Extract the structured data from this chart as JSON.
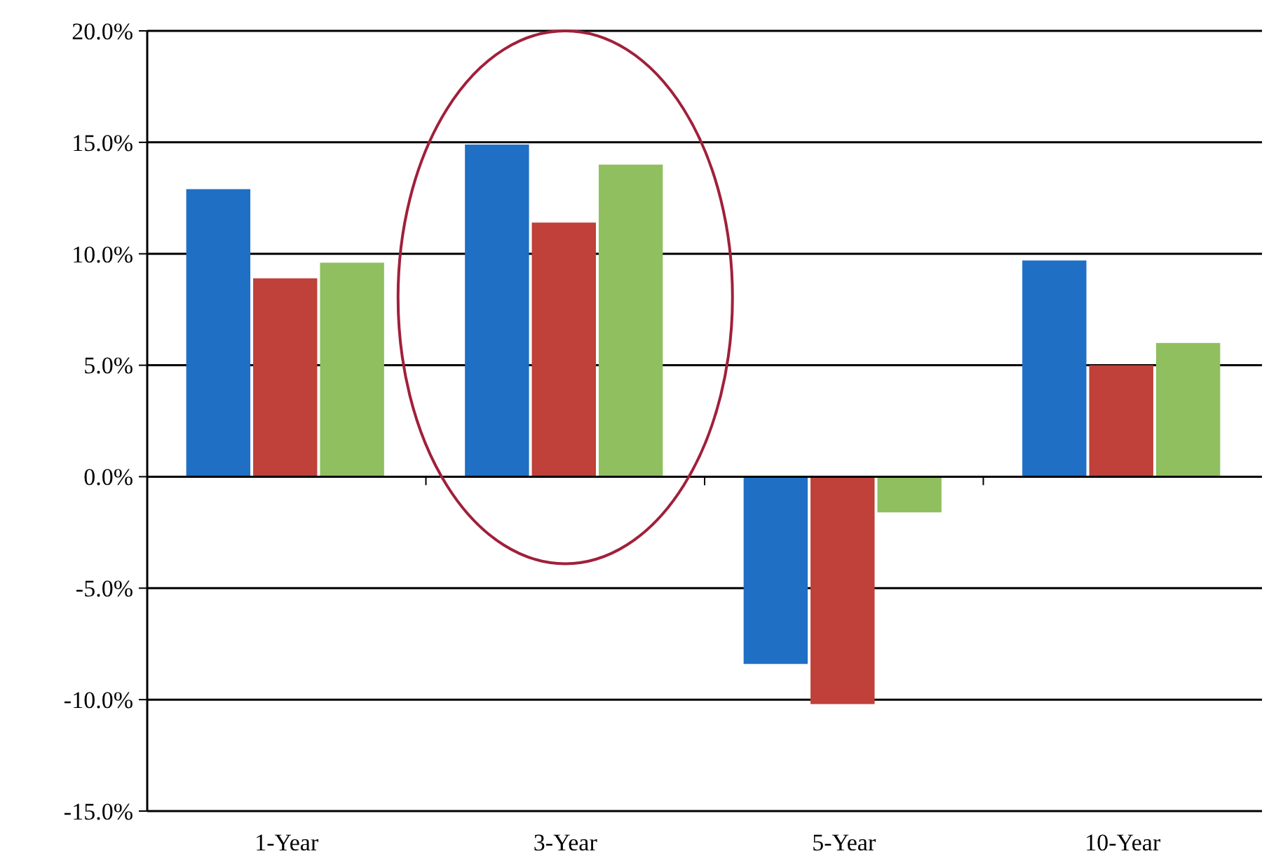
{
  "chart_data": {
    "type": "bar",
    "categories": [
      "1-Year",
      "3-Year",
      "5-Year",
      "10-Year"
    ],
    "series": [
      {
        "color": "#1f6fc5",
        "values": [
          12.9,
          14.9,
          -8.4,
          9.7
        ]
      },
      {
        "color": "#c0403a",
        "values": [
          8.9,
          11.4,
          -10.2,
          5.0
        ]
      },
      {
        "color": "#8fbf5f",
        "values": [
          9.6,
          14.0,
          -1.6,
          6.0
        ]
      }
    ],
    "ylim": [
      -15,
      20
    ],
    "yticks": [
      {
        "value": -15,
        "label": "-15.0%"
      },
      {
        "value": -10,
        "label": "-10.0%"
      },
      {
        "value": -5,
        "label": "-5.0%"
      },
      {
        "value": 0,
        "label": "0.0%"
      },
      {
        "value": 5,
        "label": "5.0%"
      },
      {
        "value": 10,
        "label": "10.0%"
      },
      {
        "value": 15,
        "label": "15.0%"
      },
      {
        "value": 20,
        "label": "20.0%"
      }
    ],
    "grid": "y"
  }
}
